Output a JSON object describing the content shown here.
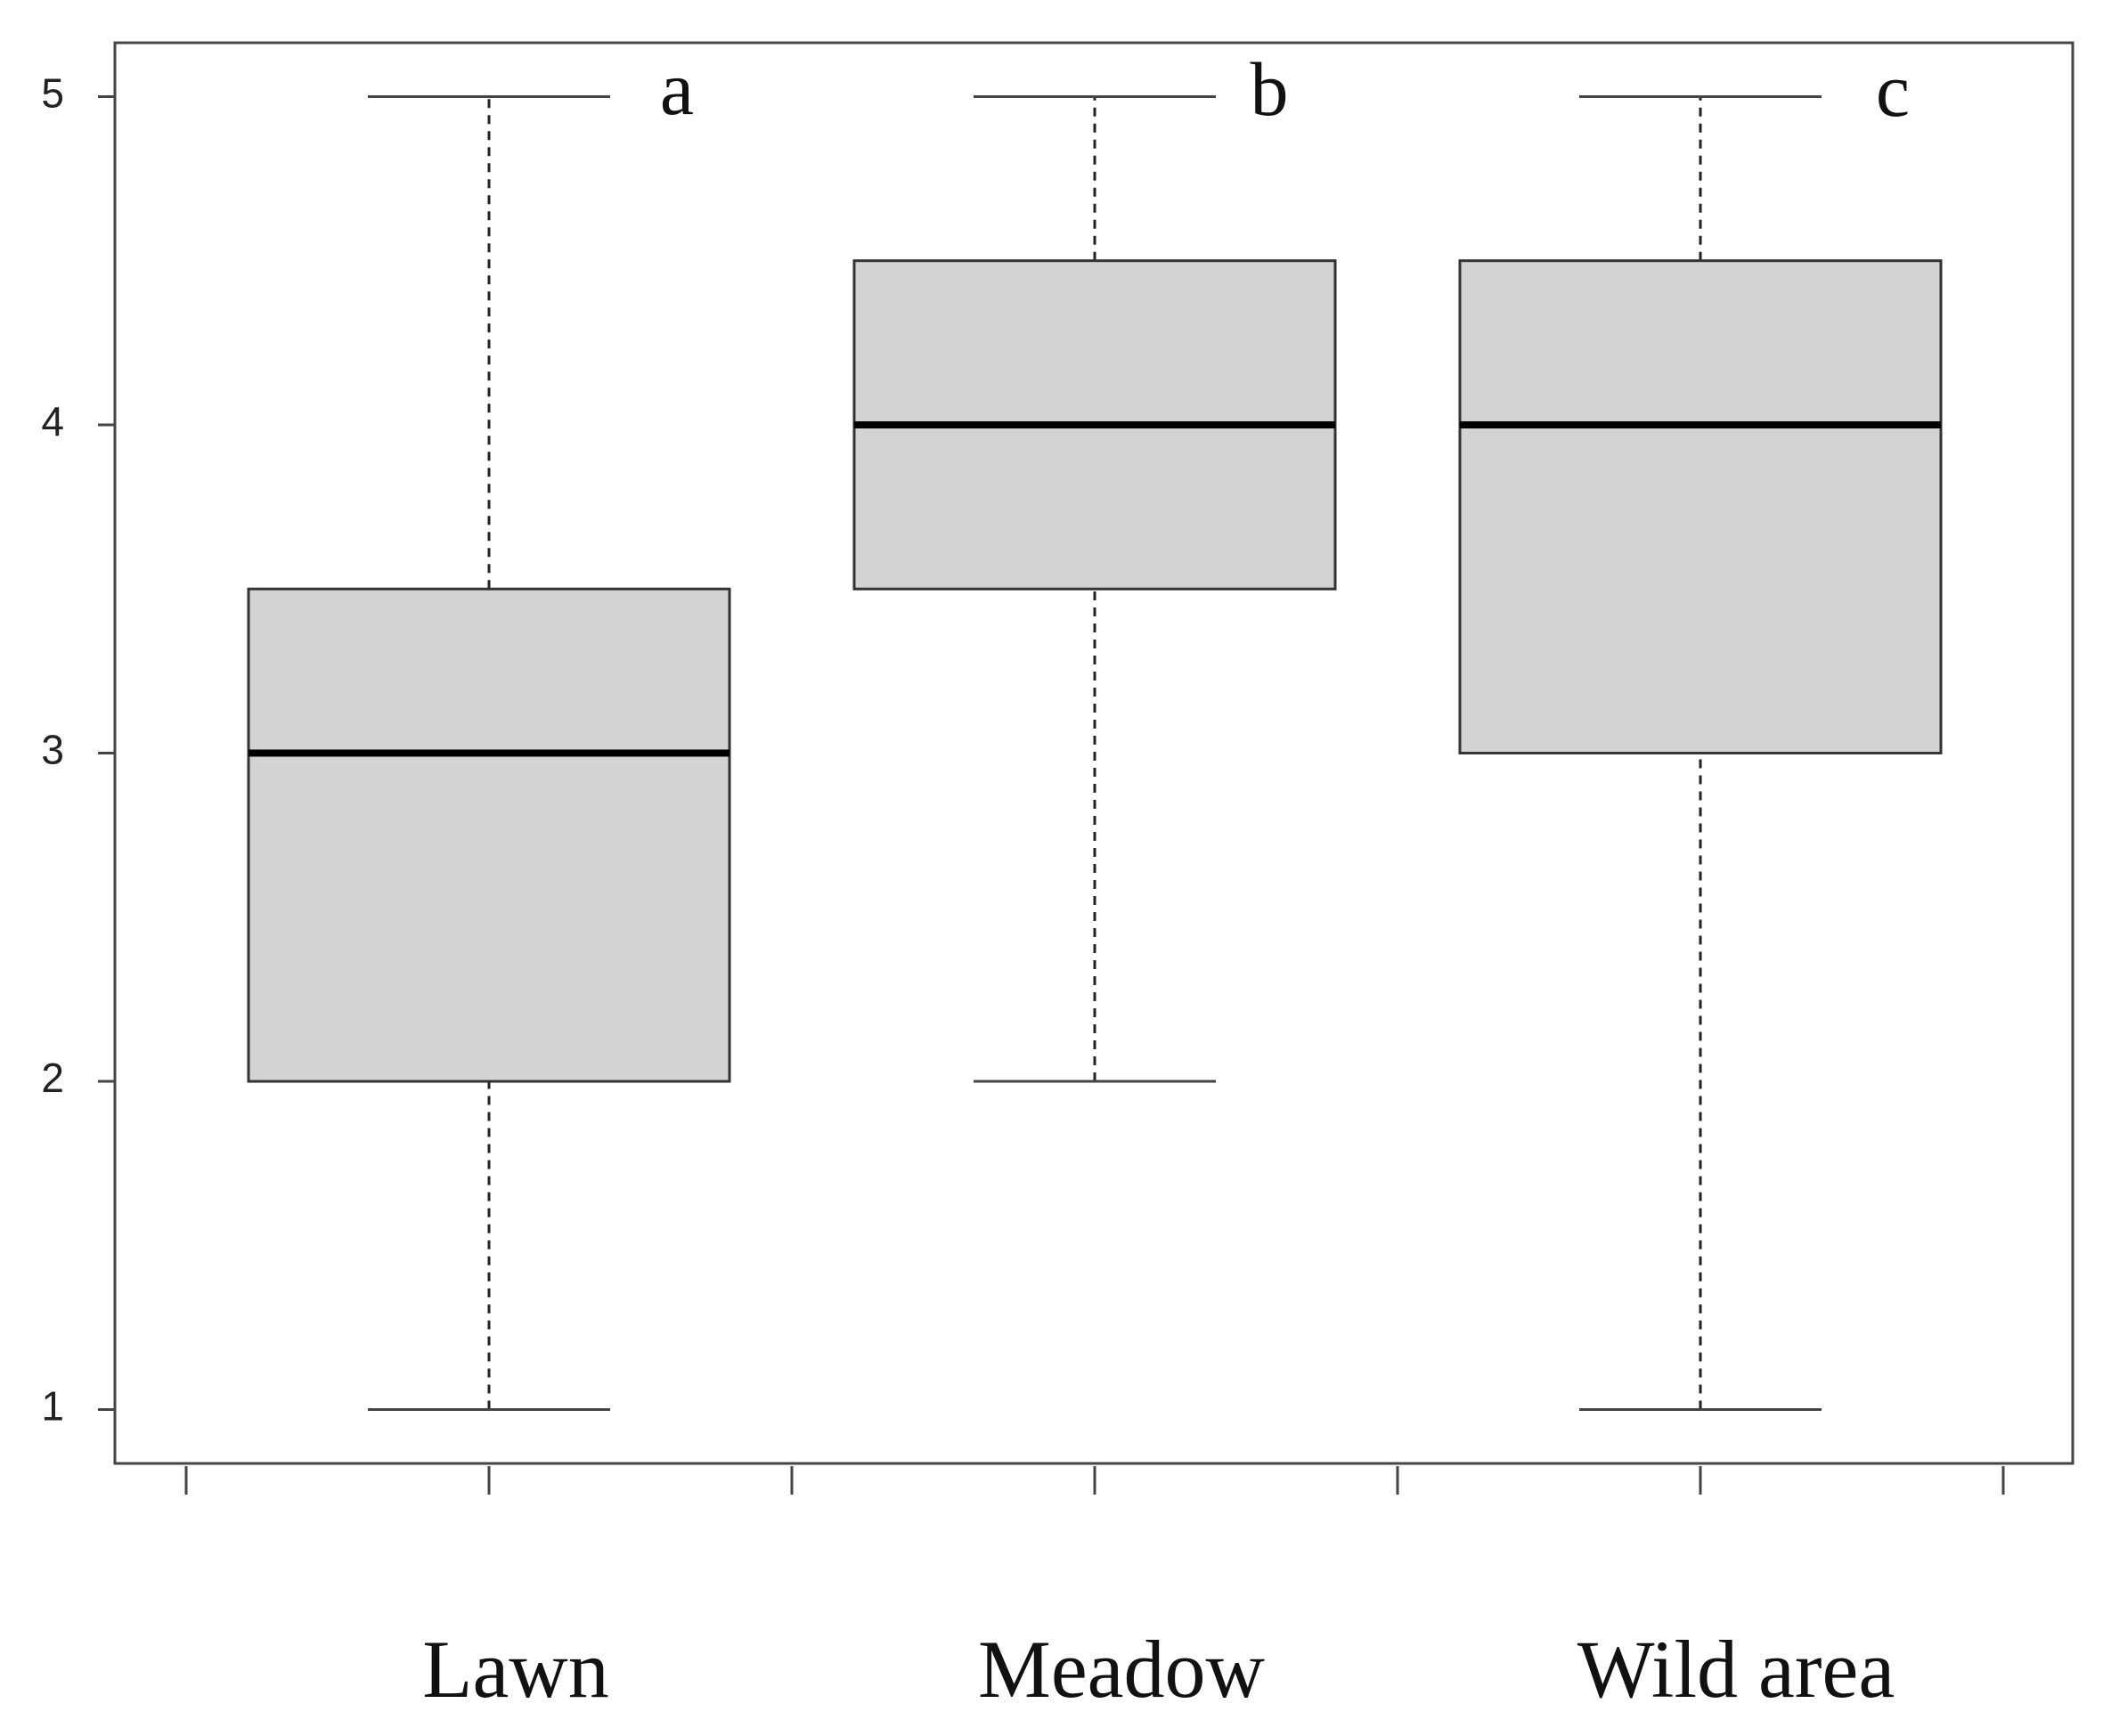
{
  "chart_data": {
    "type": "box",
    "categories": [
      "Lawn",
      "Meadow",
      "Wild area"
    ],
    "boxes": [
      {
        "min": 1,
        "q1": 2,
        "median": 3,
        "q3": 3.5,
        "max": 5
      },
      {
        "min": 2,
        "q1": 3.5,
        "median": 4,
        "q3": 4.5,
        "max": 5
      },
      {
        "min": 1,
        "q1": 3,
        "median": 4,
        "q3": 4.5,
        "max": 5
      }
    ],
    "annotations": [
      "a",
      "b",
      "c"
    ],
    "color": "#d3d3d3",
    "ylim": [
      0.836,
      5.164
    ],
    "yticks": [
      1,
      2,
      3,
      4,
      5
    ]
  }
}
